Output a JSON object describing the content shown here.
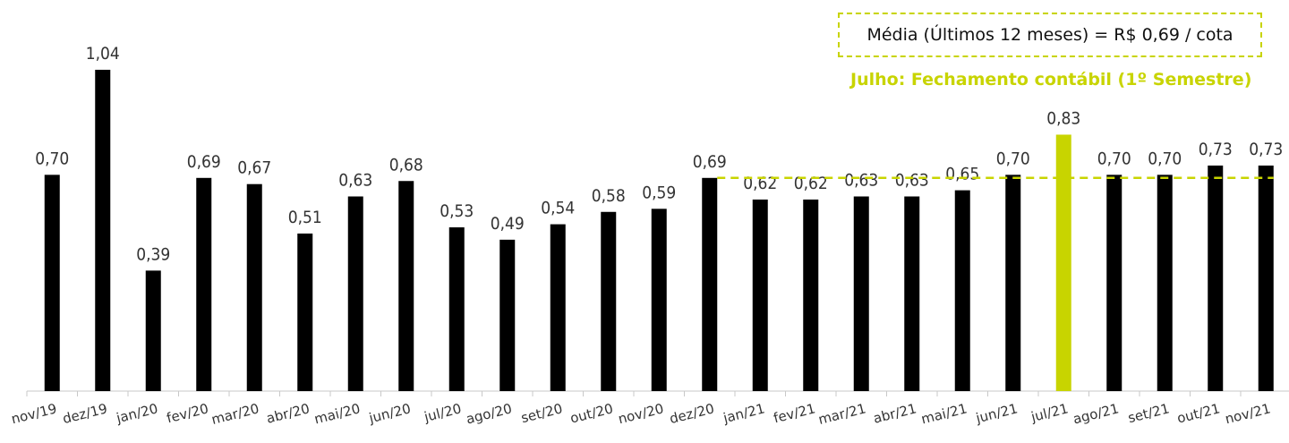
{
  "chart_data": {
    "type": "bar",
    "categories": [
      "nov/19",
      "dez/19",
      "jan/20",
      "fev/20",
      "mar/20",
      "abr/20",
      "mai/20",
      "jun/20",
      "jul/20",
      "ago/20",
      "set/20",
      "out/20",
      "nov/20",
      "dez/20",
      "jan/21",
      "fev/21",
      "mar/21",
      "abr/21",
      "mai/21",
      "jun/21",
      "jul/21",
      "ago/21",
      "set/21",
      "out/21",
      "nov/21"
    ],
    "values": [
      0.7,
      1.04,
      0.39,
      0.69,
      0.67,
      0.51,
      0.63,
      0.68,
      0.53,
      0.49,
      0.54,
      0.58,
      0.59,
      0.69,
      0.62,
      0.62,
      0.63,
      0.63,
      0.65,
      0.7,
      0.83,
      0.7,
      0.7,
      0.73,
      0.73
    ],
    "value_labels": [
      "0,70",
      "1,04",
      "0,39",
      "0,69",
      "0,67",
      "0,51",
      "0,63",
      "0,68",
      "0,53",
      "0,49",
      "0,54",
      "0,58",
      "0,59",
      "0,69",
      "0,62",
      "0,62",
      "0,63",
      "0,63",
      "0,65",
      "0,70",
      "0,83",
      "0,70",
      "0,70",
      "0,73",
      "0,73"
    ],
    "highlight_category": "jul/21",
    "ylim": [
      0,
      1.15
    ],
    "grid": false,
    "average_line": {
      "value": 0.69,
      "from": "dez/20",
      "to": "nov/21"
    },
    "colors": {
      "bar": "#000000",
      "highlight": "#c8d400",
      "average_line": "#c8d400"
    }
  },
  "average_box": {
    "text": "Média (Últimos 12 meses) = R$ 0,69 / cota"
  },
  "note": {
    "text": "Julho: Fechamento contábil (1º Semestre)"
  }
}
